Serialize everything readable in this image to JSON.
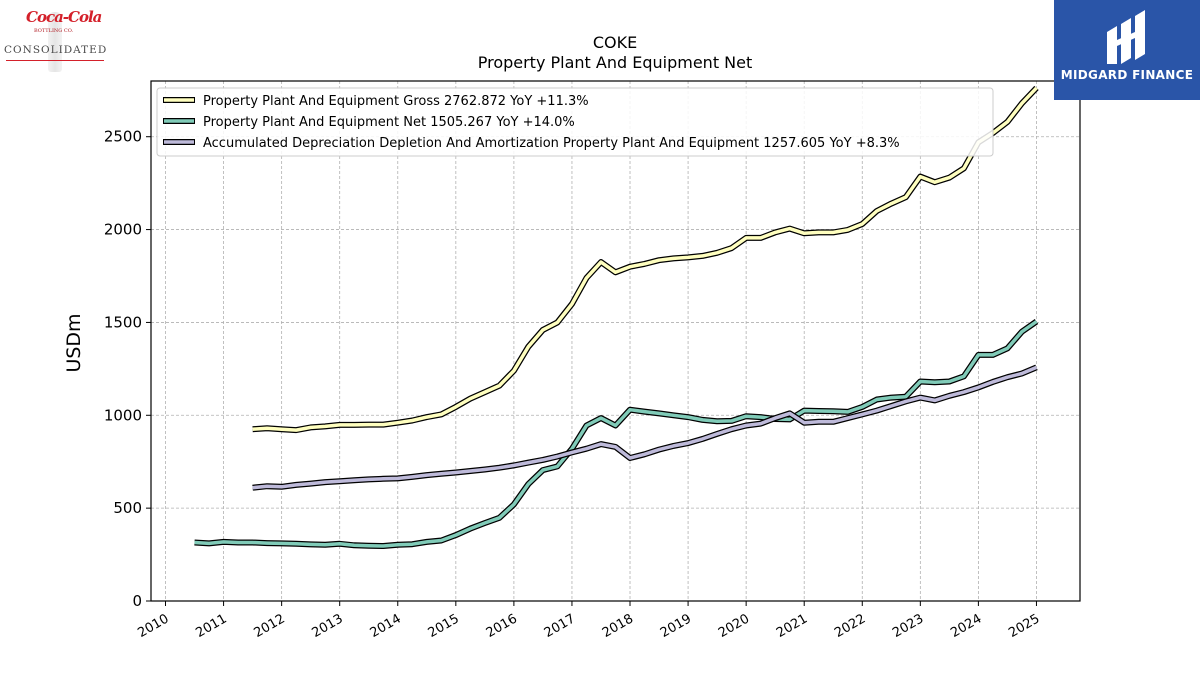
{
  "chart_data": {
    "type": "line",
    "title": "COKE",
    "subtitle": "Property Plant And Equipment Net",
    "xlabel": "",
    "ylabel": "USDm",
    "xlim": [
      2009.75,
      2025.75
    ],
    "ylim": [
      0,
      2800
    ],
    "x_ticks": [
      "2010",
      "2011",
      "2012",
      "2013",
      "2014",
      "2015",
      "2016",
      "2017",
      "2018",
      "2019",
      "2020",
      "2021",
      "2022",
      "2023",
      "2024",
      "2025"
    ],
    "y_ticks": [
      "0",
      "500",
      "1000",
      "1500",
      "2000",
      "2500"
    ],
    "grid": true,
    "legend_position": "top-left",
    "series": [
      {
        "name": "Property Plant And Equipment Gross",
        "legend_label": "Property Plant And Equipment Gross  2762.872 YoY +11.3%",
        "color": "#ffffbf",
        "x": [
          2011.5,
          2011.75,
          2012.0,
          2012.25,
          2012.5,
          2012.75,
          2013.0,
          2013.25,
          2013.5,
          2013.75,
          2014.0,
          2014.25,
          2014.5,
          2014.75,
          2015.0,
          2015.25,
          2015.5,
          2015.75,
          2016.0,
          2016.25,
          2016.5,
          2016.75,
          2017.0,
          2017.25,
          2017.5,
          2017.75,
          2018.0,
          2018.25,
          2018.5,
          2018.75,
          2019.0,
          2019.25,
          2019.5,
          2019.75,
          2020.0,
          2020.25,
          2020.5,
          2020.75,
          2021.0,
          2021.25,
          2021.5,
          2021.75,
          2022.0,
          2022.25,
          2022.5,
          2022.75,
          2023.0,
          2023.25,
          2023.5,
          2023.75,
          2024.0,
          2024.25,
          2024.5,
          2024.75,
          2025.0
        ],
        "values": [
          925,
          930,
          925,
          920,
          935,
          940,
          948,
          948,
          950,
          950,
          960,
          972,
          990,
          1005,
          1045,
          1090,
          1125,
          1160,
          1240,
          1370,
          1460,
          1500,
          1600,
          1740,
          1825,
          1770,
          1800,
          1815,
          1835,
          1845,
          1850,
          1858,
          1875,
          1900,
          1955,
          1955,
          1985,
          2005,
          1980,
          1985,
          1985,
          1998,
          2030,
          2100,
          2140,
          2175,
          2285,
          2255,
          2280,
          2330,
          2470,
          2520,
          2580,
          2680,
          2762.872
        ]
      },
      {
        "name": "Property Plant And Equipment Net",
        "legend_label": "Property Plant And Equipment Net  1505.267 YoY +14.0%",
        "color": "#80cbb8",
        "x": [
          2010.5,
          2010.75,
          2011.0,
          2011.25,
          2011.5,
          2011.75,
          2012.0,
          2012.25,
          2012.5,
          2012.75,
          2013.0,
          2013.25,
          2013.5,
          2013.75,
          2014.0,
          2014.25,
          2014.5,
          2014.75,
          2015.0,
          2015.25,
          2015.5,
          2015.75,
          2016.0,
          2016.25,
          2016.5,
          2016.75,
          2017.0,
          2017.25,
          2017.5,
          2017.75,
          2018.0,
          2018.25,
          2018.5,
          2018.75,
          2019.0,
          2019.25,
          2019.5,
          2019.75,
          2020.0,
          2020.25,
          2020.5,
          2020.75,
          2021.0,
          2021.25,
          2021.5,
          2021.75,
          2022.0,
          2022.25,
          2022.5,
          2022.75,
          2023.0,
          2023.25,
          2023.5,
          2023.75,
          2024.0,
          2024.25,
          2024.5,
          2024.75,
          2025.0
        ],
        "values": [
          315,
          310,
          318,
          315,
          315,
          312,
          310,
          308,
          305,
          303,
          308,
          300,
          298,
          296,
          303,
          306,
          318,
          326,
          355,
          390,
          420,
          448,
          520,
          630,
          705,
          725,
          820,
          945,
          985,
          945,
          1030,
          1020,
          1010,
          1000,
          990,
          975,
          968,
          970,
          995,
          990,
          980,
          978,
          1025,
          1023,
          1022,
          1018,
          1045,
          1085,
          1095,
          1100,
          1182,
          1178,
          1182,
          1210,
          1325,
          1325,
          1360,
          1450,
          1505.267
        ]
      },
      {
        "name": "Accumulated Depreciation Depletion And Amortization Property Plant And Equipment",
        "legend_label": "Accumulated Depreciation Depletion And Amortization Property Plant And Equipment  1257.605 YoY +8.3%",
        "color": "#bebada",
        "x": [
          2011.5,
          2011.75,
          2012.0,
          2012.25,
          2012.5,
          2012.75,
          2013.0,
          2013.25,
          2013.5,
          2013.75,
          2014.0,
          2014.25,
          2014.5,
          2014.75,
          2015.0,
          2015.25,
          2015.5,
          2015.75,
          2016.0,
          2016.25,
          2016.5,
          2016.75,
          2017.0,
          2017.25,
          2017.5,
          2017.75,
          2018.0,
          2018.25,
          2018.5,
          2018.75,
          2019.0,
          2019.25,
          2019.5,
          2019.75,
          2020.0,
          2020.25,
          2020.5,
          2020.75,
          2021.0,
          2021.25,
          2021.5,
          2021.75,
          2022.0,
          2022.25,
          2022.5,
          2022.75,
          2023.0,
          2023.25,
          2023.5,
          2023.75,
          2024.0,
          2024.25,
          2024.5,
          2024.75,
          2025.0
        ],
        "values": [
          610,
          618,
          615,
          625,
          632,
          640,
          645,
          650,
          655,
          658,
          660,
          668,
          678,
          685,
          692,
          700,
          708,
          718,
          730,
          745,
          760,
          778,
          800,
          820,
          845,
          830,
          770,
          790,
          815,
          835,
          850,
          873,
          900,
          925,
          945,
          955,
          985,
          1010,
          960,
          965,
          965,
          985,
          1005,
          1025,
          1050,
          1075,
          1095,
          1080,
          1105,
          1125,
          1150,
          1180,
          1205,
          1225,
          1257.605
        ]
      }
    ]
  },
  "logos": {
    "left": {
      "script": "Coca-Cola",
      "small": "BOTTLING CO.",
      "name": "CONSOLIDATED"
    },
    "right": {
      "name": "MIDGARD FINANCE"
    }
  }
}
